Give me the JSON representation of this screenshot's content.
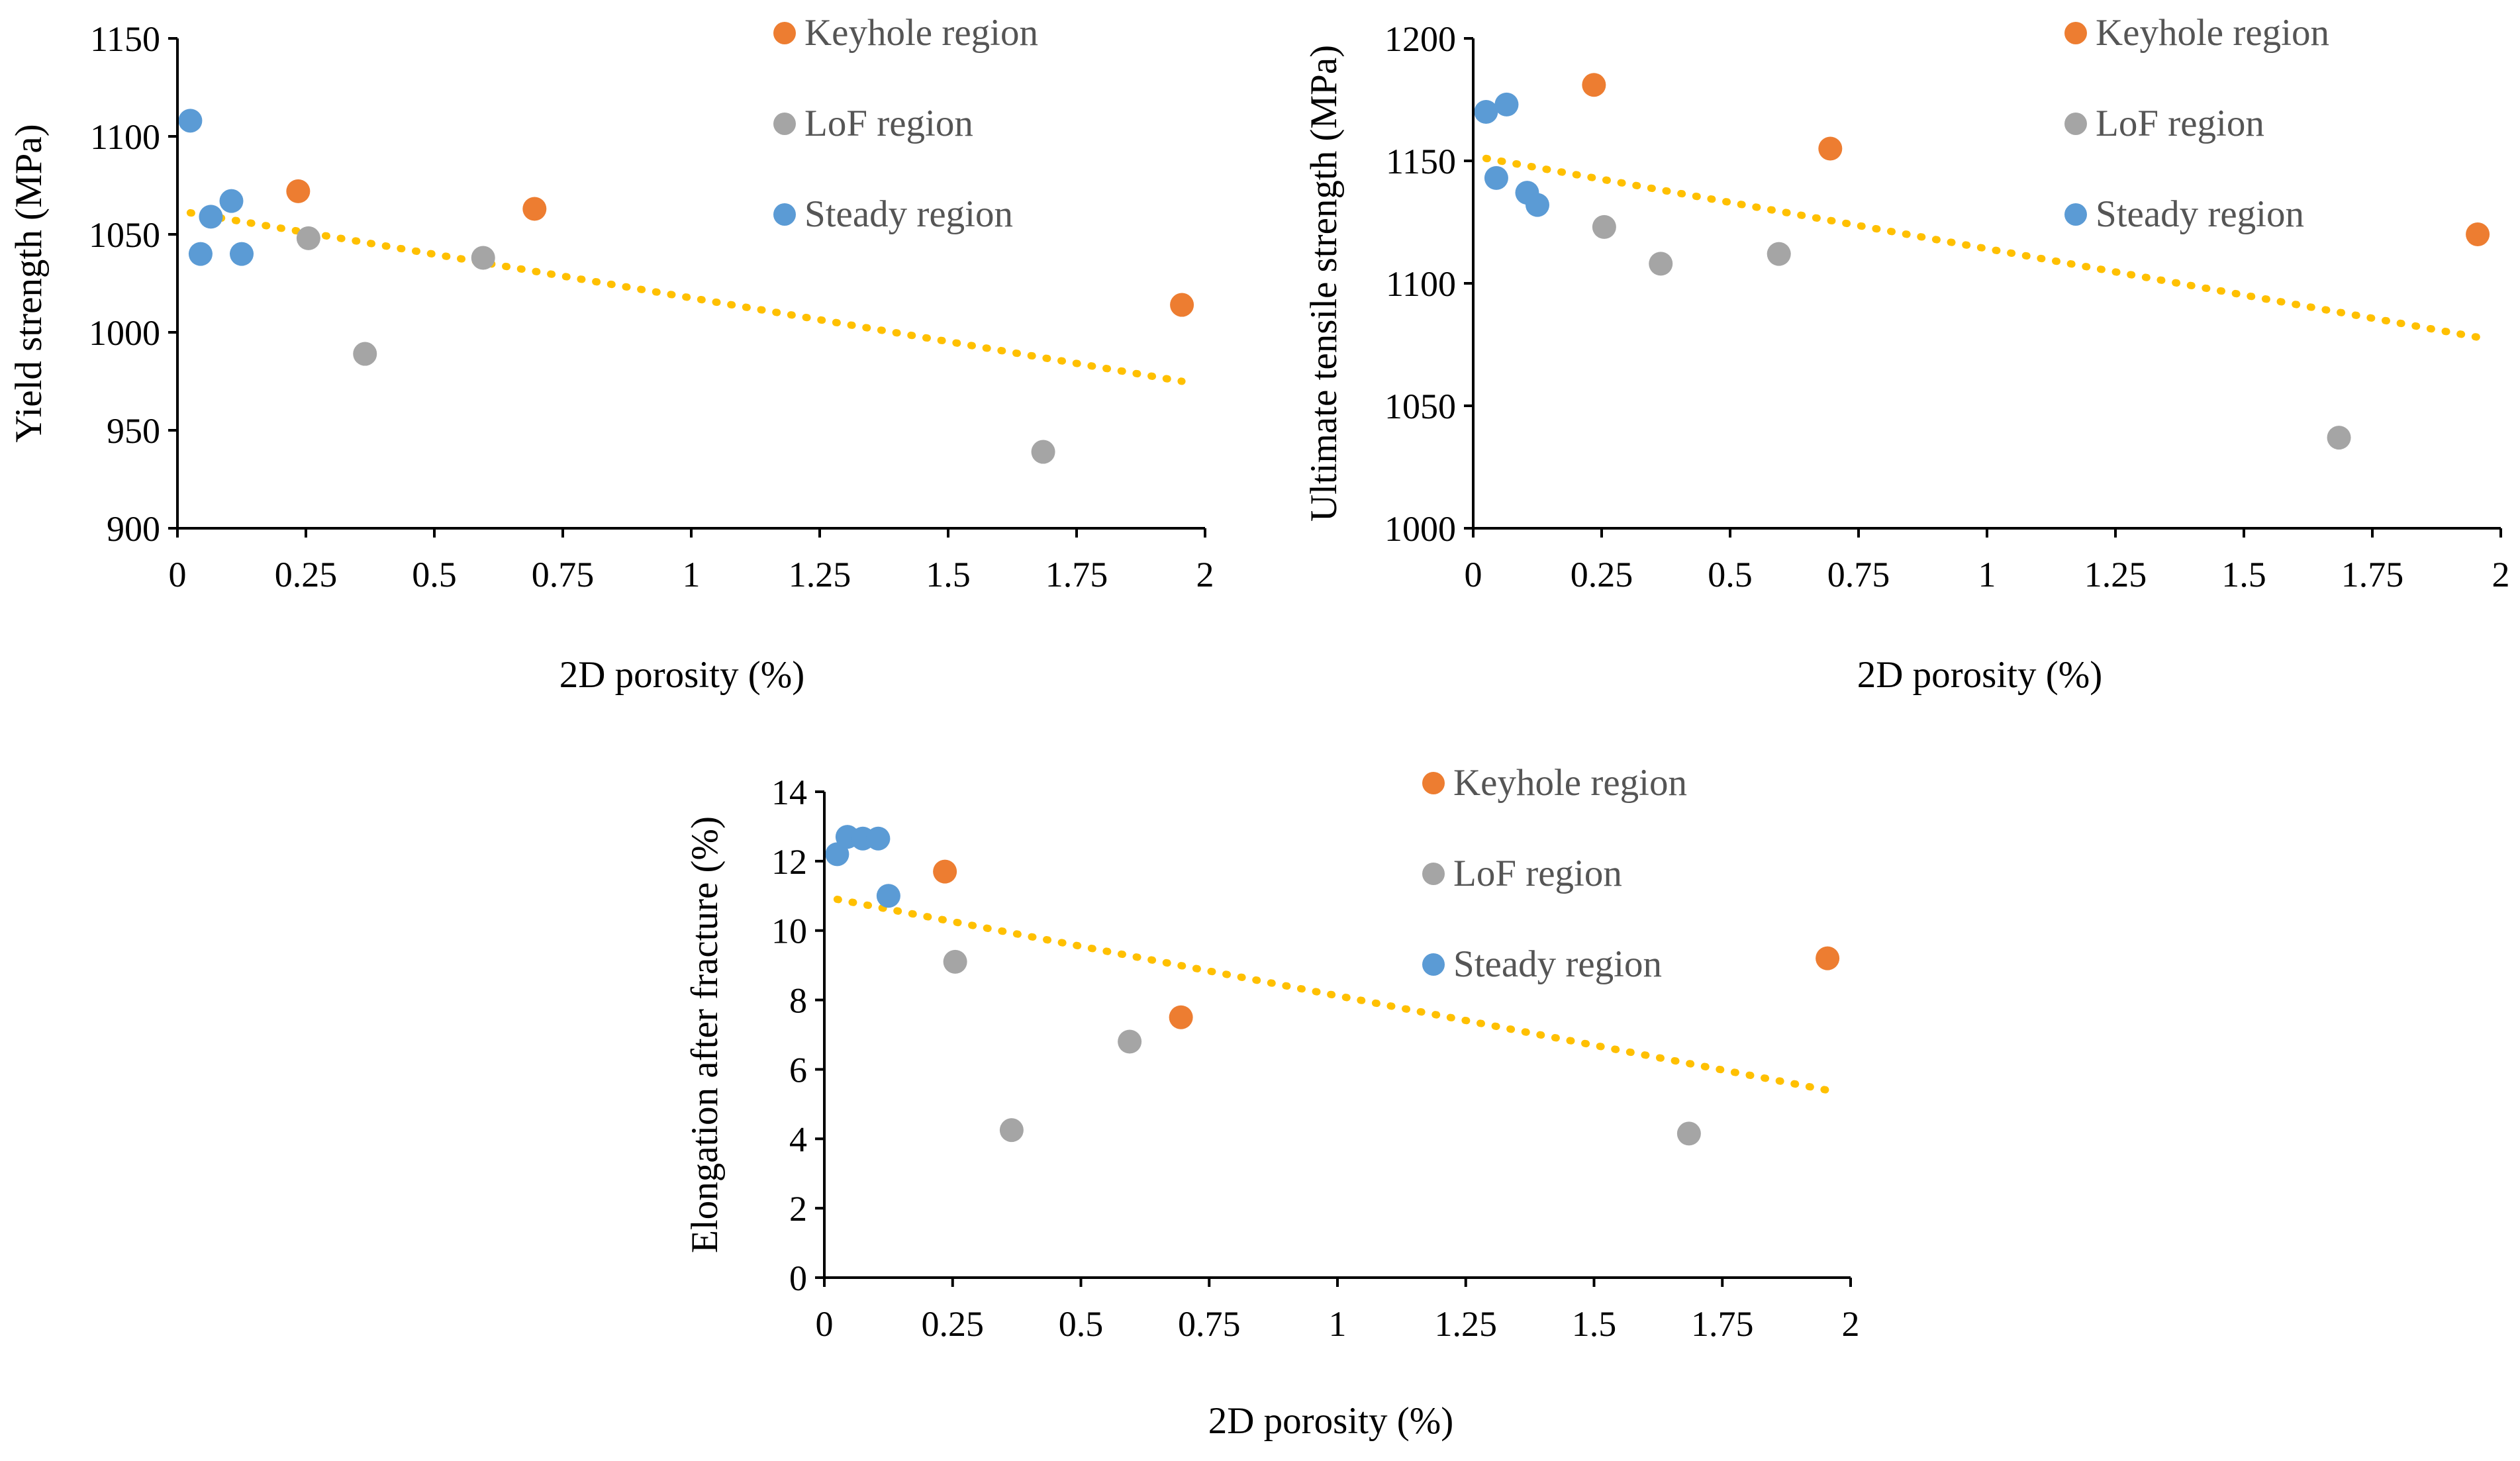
{
  "colors": {
    "keyhole": "#ED7D31",
    "lof": "#A5A5A5",
    "steady": "#5B9BD5",
    "trend": "#FFC000"
  },
  "chart_data": [
    {
      "id": "yield",
      "type": "scatter",
      "xlabel": "2D porosity (%)",
      "ylabel": "Yield  strength (MPa)",
      "xlim": [
        0,
        2
      ],
      "ylim": [
        900,
        1150
      ],
      "x_ticks": [
        0,
        0.25,
        0.5,
        0.75,
        1,
        1.25,
        1.5,
        1.75,
        2
      ],
      "x_tick_labels": [
        "0",
        "0.25",
        "0.5",
        "0.75",
        "1",
        "1.25",
        "1.5",
        "1.75",
        "2"
      ],
      "y_ticks": [
        900,
        950,
        1000,
        1050,
        1100,
        1150
      ],
      "y_tick_labels": [
        "900",
        "950",
        "1000",
        "1050",
        "1100",
        "1150"
      ],
      "legend": [
        "Keyhole region",
        "LoF region",
        "Steady region"
      ],
      "series": [
        {
          "name": "Keyhole region",
          "color_key": "keyhole",
          "points": [
            [
              0.235,
              1072
            ],
            [
              0.695,
              1063
            ],
            [
              1.955,
              1014
            ]
          ]
        },
        {
          "name": "LoF region",
          "color_key": "lof",
          "points": [
            [
              0.255,
              1048
            ],
            [
              0.365,
              989
            ],
            [
              0.595,
              1038
            ],
            [
              1.685,
              939
            ]
          ]
        },
        {
          "name": "Steady region",
          "color_key": "steady",
          "points": [
            [
              0.025,
              1108
            ],
            [
              0.045,
              1040
            ],
            [
              0.065,
              1059
            ],
            [
              0.105,
              1067
            ],
            [
              0.125,
              1040
            ]
          ]
        }
      ],
      "trendline": {
        "x": [
          0.025,
          1.955
        ],
        "y": [
          1061,
          975
        ]
      }
    },
    {
      "id": "uts",
      "type": "scatter",
      "xlabel": "2D porosity (%)",
      "ylabel": "Ultimate  tensile strength (MPa)",
      "xlim": [
        0,
        2
      ],
      "ylim": [
        1000,
        1200
      ],
      "x_ticks": [
        0,
        0.25,
        0.5,
        0.75,
        1,
        1.25,
        1.5,
        1.75,
        2
      ],
      "x_tick_labels": [
        "0",
        "0.25",
        "0.5",
        "0.75",
        "1",
        "1.25",
        "1.5",
        "1.75",
        "2"
      ],
      "y_ticks": [
        1000,
        1050,
        1100,
        1150,
        1200
      ],
      "y_tick_labels": [
        "1000",
        "1050",
        "1100",
        "1150",
        "1200"
      ],
      "legend": [
        "Keyhole region",
        "LoF region",
        "Steady region"
      ],
      "series": [
        {
          "name": "Keyhole region",
          "color_key": "keyhole",
          "points": [
            [
              0.235,
              1181
            ],
            [
              0.695,
              1155
            ],
            [
              1.955,
              1120
            ]
          ]
        },
        {
          "name": "LoF region",
          "color_key": "lof",
          "points": [
            [
              0.255,
              1123
            ],
            [
              0.365,
              1108
            ],
            [
              0.595,
              1112
            ],
            [
              1.685,
              1037
            ]
          ]
        },
        {
          "name": "Steady region",
          "color_key": "steady",
          "points": [
            [
              0.025,
              1170
            ],
            [
              0.045,
              1143
            ],
            [
              0.065,
              1173
            ],
            [
              0.105,
              1137
            ],
            [
              0.125,
              1132
            ]
          ]
        }
      ],
      "trendline": {
        "x": [
          0.025,
          1.955
        ],
        "y": [
          1151,
          1078
        ]
      }
    },
    {
      "id": "elongation",
      "type": "scatter",
      "xlabel": "2D porosity (%)",
      "ylabel": "Elongation after fracture (%)",
      "xlim": [
        0,
        2
      ],
      "ylim": [
        0,
        14
      ],
      "x_ticks": [
        0,
        0.25,
        0.5,
        0.75,
        1,
        1.25,
        1.5,
        1.75,
        2
      ],
      "x_tick_labels": [
        "0",
        "0.25",
        "0.5",
        "0.75",
        "1",
        "1.25",
        "1.5",
        "1.75",
        "2"
      ],
      "y_ticks": [
        0,
        2,
        4,
        6,
        8,
        10,
        12,
        14
      ],
      "y_tick_labels": [
        "0",
        "2",
        "4",
        "6",
        "8",
        "10",
        "12",
        "14"
      ],
      "legend": [
        "Keyhole region",
        "LoF region",
        "Steady region"
      ],
      "series": [
        {
          "name": "Keyhole region",
          "color_key": "keyhole",
          "points": [
            [
              0.235,
              11.7
            ],
            [
              0.695,
              7.5
            ],
            [
              1.955,
              9.2
            ]
          ]
        },
        {
          "name": "LoF region",
          "color_key": "lof",
          "points": [
            [
              0.255,
              9.1
            ],
            [
              0.365,
              4.25
            ],
            [
              0.595,
              6.8
            ],
            [
              1.685,
              4.15
            ]
          ]
        },
        {
          "name": "Steady region",
          "color_key": "steady",
          "points": [
            [
              0.025,
              12.2
            ],
            [
              0.045,
              12.7
            ],
            [
              0.075,
              12.65
            ],
            [
              0.105,
              12.65
            ],
            [
              0.125,
              11.0
            ]
          ]
        }
      ],
      "trendline": {
        "x": [
          0.025,
          1.955
        ],
        "y": [
          10.9,
          5.4
        ]
      }
    }
  ]
}
